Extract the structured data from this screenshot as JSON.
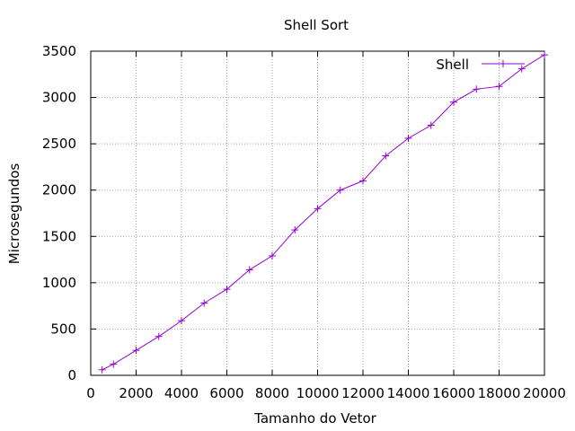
{
  "chart_data": {
    "type": "line",
    "title": "Shell Sort",
    "xlabel": "Tamanho do Vetor",
    "ylabel": "Microsegundos",
    "xlim": [
      0,
      20000
    ],
    "ylim": [
      0,
      3500
    ],
    "x_ticks": [
      0,
      2000,
      4000,
      6000,
      8000,
      10000,
      12000,
      14000,
      16000,
      18000,
      20000
    ],
    "y_ticks": [
      0,
      500,
      1000,
      1500,
      2000,
      2500,
      3000,
      3500
    ],
    "grid": true,
    "legend_position": "top-right",
    "series": [
      {
        "name": "Shell",
        "color": "#9400d3",
        "marker": "plus",
        "x": [
          500,
          1000,
          2000,
          3000,
          4000,
          5000,
          6000,
          7000,
          8000,
          9000,
          10000,
          11000,
          12000,
          13000,
          14000,
          15000,
          16000,
          17000,
          18000,
          19000,
          20000
        ],
        "y": [
          60,
          120,
          270,
          420,
          590,
          780,
          930,
          1140,
          1290,
          1570,
          1800,
          2000,
          2100,
          2370,
          2560,
          2700,
          2950,
          3090,
          3120,
          3310,
          3460
        ]
      }
    ]
  }
}
